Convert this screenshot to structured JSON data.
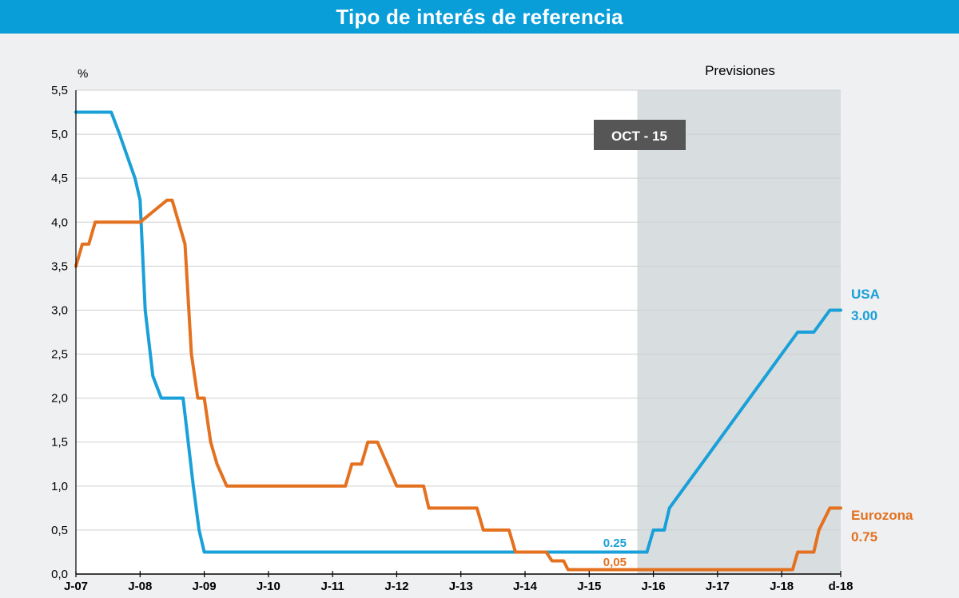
{
  "header": {
    "title": "Tipo de interés de referencia"
  },
  "colors": {
    "header_bg": "#0a9ed9",
    "usa": "#1aa0d8",
    "eurozona": "#e3711f",
    "forecast_bg": "#d8dde0",
    "plot_bg": "#ffffff",
    "badge_bg": "#565656"
  },
  "chart_data": {
    "type": "line",
    "ylabel": "%",
    "ylim": [
      0,
      5.5
    ],
    "yticks": [
      0,
      0.5,
      1.0,
      1.5,
      2.0,
      2.5,
      3.0,
      3.5,
      4.0,
      4.5,
      5.0,
      5.5
    ],
    "ytick_labels": [
      "0,0",
      "0,5",
      "1,0",
      "1,5",
      "2,0",
      "2,5",
      "3,0",
      "3,5",
      "4,0",
      "4,5",
      "5,0",
      "5,5"
    ],
    "xlim": [
      2007.0,
      2018.92
    ],
    "xticks": [
      2007.0,
      2008.0,
      2009.0,
      2010.0,
      2011.0,
      2012.0,
      2013.0,
      2014.0,
      2015.0,
      2016.0,
      2017.0,
      2018.0,
      2018.92
    ],
    "xtick_labels": [
      "J-07",
      "J-08",
      "J-09",
      "J-10",
      "J-11",
      "J-12",
      "J-13",
      "J-14",
      "J-15",
      "J-16",
      "J-17",
      "J-18",
      "d-18"
    ],
    "grid": true,
    "forecast": {
      "label": "Previsiones",
      "start": 2015.75,
      "end": 2018.92
    },
    "annotation": "OCT - 15",
    "series": [
      {
        "name": "USA",
        "end_value_label": "3.00",
        "current_value_label": "0.25",
        "x": [
          2007.0,
          2007.55,
          2007.68,
          2007.8,
          2007.92,
          2008.0,
          2008.08,
          2008.2,
          2008.33,
          2008.67,
          2008.75,
          2008.83,
          2008.92,
          2009.0,
          2015.9,
          2016.0,
          2016.17,
          2016.25,
          2016.5,
          2016.75,
          2017.0,
          2017.25,
          2017.5,
          2017.75,
          2018.0,
          2018.25,
          2018.5,
          2018.75,
          2018.83,
          2018.92
        ],
        "y": [
          5.25,
          5.25,
          5.0,
          4.75,
          4.5,
          4.25,
          3.0,
          2.25,
          2.0,
          2.0,
          1.5,
          1.0,
          0.5,
          0.25,
          0.25,
          0.5,
          0.5,
          0.75,
          1.0,
          1.25,
          1.5,
          1.75,
          2.0,
          2.25,
          2.5,
          2.75,
          2.75,
          3.0,
          3.0,
          3.0
        ]
      },
      {
        "name": "Eurozona",
        "end_value_label": "0.75",
        "current_value_label": "0,05",
        "x": [
          2007.0,
          2007.1,
          2007.2,
          2007.3,
          2007.45,
          2007.55,
          2007.7,
          2008.0,
          2008.42,
          2008.5,
          2008.7,
          2008.8,
          2008.9,
          2009.0,
          2009.1,
          2009.2,
          2009.35,
          2011.2,
          2011.3,
          2011.45,
          2011.55,
          2011.7,
          2011.85,
          2012.0,
          2012.42,
          2012.5,
          2013.25,
          2013.35,
          2013.75,
          2013.85,
          2014.33,
          2014.42,
          2014.6,
          2014.67,
          2018.17,
          2018.25,
          2018.5,
          2018.58,
          2018.75,
          2018.92
        ],
        "y": [
          3.5,
          3.75,
          3.75,
          4.0,
          4.0,
          4.0,
          4.0,
          4.0,
          4.25,
          4.25,
          3.75,
          2.5,
          2.0,
          2.0,
          1.5,
          1.25,
          1.0,
          1.0,
          1.25,
          1.25,
          1.5,
          1.5,
          1.25,
          1.0,
          1.0,
          0.75,
          0.75,
          0.5,
          0.5,
          0.25,
          0.25,
          0.15,
          0.15,
          0.05,
          0.05,
          0.25,
          0.25,
          0.5,
          0.75,
          0.75
        ]
      }
    ]
  }
}
